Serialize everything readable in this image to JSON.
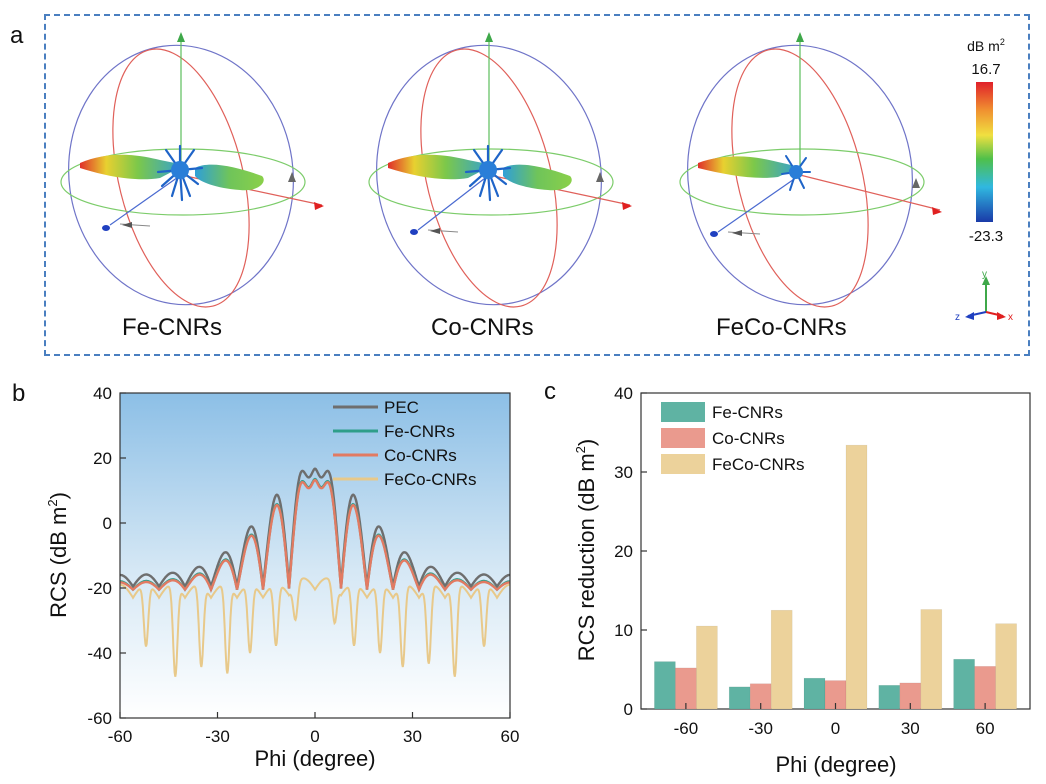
{
  "panels": {
    "a": "a",
    "b": "b",
    "c": "c"
  },
  "panel_a": {
    "captions": [
      "Fe-CNRs",
      "Co-CNRs",
      "FeCo-CNRs"
    ],
    "colorbar": {
      "unit": "dB m",
      "unit_sup": "2",
      "max": "16.7",
      "min": "-23.3"
    },
    "axes_triad": {
      "x": "x",
      "y": "y",
      "z": "z"
    }
  },
  "chart_data": [
    {
      "panel": "b",
      "type": "line",
      "xlabel": "Phi (degree)",
      "ylabel": "RCS (dB m",
      "ylabel_sup": "2",
      "ylabel_end": ")",
      "xlim": [
        -60,
        60
      ],
      "ylim": [
        -60,
        40
      ],
      "xticks": [
        "-60",
        "-30",
        "0",
        "30",
        "60"
      ],
      "yticks": [
        "-60",
        "-40",
        "-20",
        "0",
        "20",
        "40"
      ],
      "legend_position": "top-right",
      "series": [
        {
          "name": "PEC",
          "color": "#6e6e6e",
          "peak": 16.7,
          "baseline": -16,
          "floor": -19.5
        },
        {
          "name": "Fe-CNRs",
          "color": "#2e9e8a",
          "peak": 13.5,
          "baseline": -18,
          "floor": -20.5
        },
        {
          "name": "Co-CNRs",
          "color": "#e27a62",
          "peak": 13.2,
          "baseline": -18.3,
          "floor": -20.5
        },
        {
          "name": "FeCo-CNRs",
          "color": "#e8c98a",
          "peak": -16.5,
          "baseline": -19,
          "floor": -24,
          "dips": [
            {
              "x": -52,
              "y": -38
            },
            {
              "x": -43,
              "y": -47
            },
            {
              "x": -35,
              "y": -44
            },
            {
              "x": -27,
              "y": -46
            },
            {
              "x": -20,
              "y": -40
            },
            {
              "x": -12,
              "y": -38
            },
            {
              "x": -6,
              "y": -30
            },
            {
              "x": 6,
              "y": -31
            },
            {
              "x": 12,
              "y": -38
            },
            {
              "x": 20,
              "y": -40
            },
            {
              "x": 27,
              "y": -44
            },
            {
              "x": 35,
              "y": -43
            },
            {
              "x": 43,
              "y": -47
            },
            {
              "x": 52,
              "y": -38
            }
          ]
        }
      ]
    },
    {
      "panel": "c",
      "type": "bar",
      "xlabel": "Phi (degree)",
      "ylabel": "RCS reduction (dB m",
      "ylabel_sup": "2",
      "ylabel_end": ")",
      "categories": [
        "-60",
        "-30",
        "0",
        "30",
        "60"
      ],
      "ylim": [
        0,
        40
      ],
      "yticks": [
        "0",
        "10",
        "20",
        "30",
        "40"
      ],
      "legend_position": "top-left",
      "series": [
        {
          "name": "Fe-CNRs",
          "color": "#5fb3a3",
          "values": [
            6.0,
            2.8,
            3.9,
            3.0,
            6.3
          ]
        },
        {
          "name": "Co-CNRs",
          "color": "#ea9a8e",
          "values": [
            5.2,
            3.2,
            3.6,
            3.3,
            5.4
          ]
        },
        {
          "name": "FeCo-CNRs",
          "color": "#ecd29b",
          "values": [
            10.5,
            12.5,
            33.4,
            12.6,
            10.8
          ]
        }
      ]
    }
  ]
}
